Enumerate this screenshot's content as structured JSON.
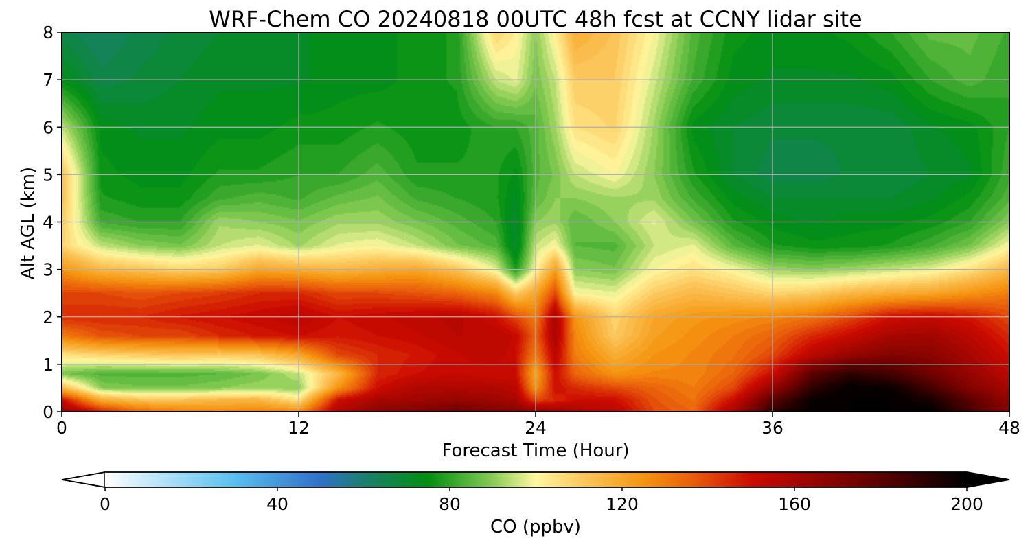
{
  "chart_data": {
    "type": "heatmap",
    "title": "WRF-Chem CO  20240818 00UTC 48h fcst at CCNY lidar site",
    "xlabel": "Forecast Time (Hour)",
    "ylabel": "Alt AGL (km)",
    "xlim": [
      0,
      48
    ],
    "ylim": [
      0,
      8
    ],
    "x_ticks": [
      0,
      12,
      24,
      36,
      48
    ],
    "y_ticks": [
      0,
      1,
      2,
      3,
      4,
      5,
      6,
      7,
      8
    ],
    "grid": true,
    "colorbar": {
      "label": "CO  (ppbv)",
      "range": [
        0,
        200
      ],
      "ticks": [
        0,
        40,
        80,
        120,
        160,
        200
      ],
      "extend": "both",
      "orientation": "horizontal",
      "stops": [
        {
          "value": 0,
          "color": "#ffffff"
        },
        {
          "value": 20,
          "color": "#8fd3f5"
        },
        {
          "value": 30,
          "color": "#58c0ef"
        },
        {
          "value": 50,
          "color": "#3070c8"
        },
        {
          "value": 60,
          "color": "#1a7f70"
        },
        {
          "value": 75,
          "color": "#008f10"
        },
        {
          "value": 90,
          "color": "#88cc55"
        },
        {
          "value": 100,
          "color": "#fff8a0"
        },
        {
          "value": 112,
          "color": "#fbc255"
        },
        {
          "value": 125,
          "color": "#f59510"
        },
        {
          "value": 137,
          "color": "#e85a0a"
        },
        {
          "value": 150,
          "color": "#cc0a00"
        },
        {
          "value": 175,
          "color": "#700200"
        },
        {
          "value": 200,
          "color": "#000000"
        }
      ]
    },
    "field": {
      "description_units": "CO mixing ratio in ppbv; rows are altitude km, columns are forecast hour",
      "hours": [
        0,
        2,
        4,
        6,
        8,
        10,
        12,
        14,
        16,
        18,
        20,
        22,
        23,
        24,
        25,
        26,
        28,
        30,
        32,
        34,
        36,
        38,
        40,
        42,
        44,
        46,
        48
      ],
      "alts_km": [
        0,
        0.25,
        0.5,
        0.8,
        1.2,
        1.6,
        2.0,
        2.5,
        3.0,
        3.5,
        4.0,
        4.5,
        5.0,
        6.0,
        7.0,
        8.0
      ],
      "values": [
        [
          165,
          148,
          135,
          130,
          128,
          130,
          128,
          158,
          168,
          172,
          176,
          172,
          170,
          168,
          165,
          160,
          155,
          140,
          135,
          160,
          190,
          200,
          200,
          200,
          200,
          185,
          170
        ],
        [
          150,
          118,
          112,
          112,
          115,
          115,
          105,
          150,
          160,
          162,
          165,
          162,
          160,
          140,
          145,
          150,
          150,
          138,
          132,
          150,
          180,
          198,
          200,
          200,
          195,
          180,
          165
        ],
        [
          115,
          90,
          88,
          88,
          90,
          92,
          90,
          125,
          150,
          158,
          158,
          158,
          155,
          125,
          150,
          145,
          140,
          135,
          130,
          140,
          165,
          190,
          200,
          198,
          185,
          170,
          160
        ],
        [
          88,
          84,
          84,
          84,
          85,
          88,
          95,
          115,
          145,
          150,
          152,
          150,
          150,
          120,
          150,
          135,
          125,
          128,
          128,
          135,
          150,
          180,
          190,
          185,
          175,
          165,
          155
        ],
        [
          105,
          108,
          110,
          112,
          110,
          112,
          120,
          140,
          145,
          148,
          152,
          155,
          150,
          130,
          155,
          130,
          118,
          125,
          128,
          132,
          140,
          155,
          165,
          170,
          168,
          160,
          150
        ],
        [
          130,
          138,
          140,
          140,
          145,
          148,
          150,
          148,
          150,
          152,
          155,
          155,
          152,
          135,
          160,
          128,
          110,
          122,
          126,
          130,
          135,
          145,
          152,
          160,
          162,
          155,
          145
        ],
        [
          145,
          145,
          145,
          148,
          150,
          152,
          155,
          150,
          152,
          154,
          156,
          150,
          140,
          130,
          160,
          125,
          108,
          120,
          124,
          126,
          128,
          132,
          140,
          150,
          152,
          148,
          140
        ],
        [
          140,
          140,
          138,
          140,
          142,
          145,
          145,
          140,
          140,
          138,
          135,
          128,
          110,
          120,
          140,
          100,
          98,
          110,
          115,
          112,
          108,
          110,
          115,
          118,
          120,
          125,
          130
        ],
        [
          125,
          115,
          112,
          108,
          110,
          120,
          118,
          115,
          118,
          120,
          112,
          98,
          78,
          100,
          122,
          90,
          88,
          100,
          105,
          100,
          92,
          90,
          92,
          95,
          98,
          105,
          115
        ],
        [
          108,
          95,
          90,
          88,
          95,
          98,
          92,
          98,
          100,
          95,
          88,
          84,
          70,
          95,
          100,
          85,
          84,
          95,
          98,
          85,
          78,
          76,
          76,
          78,
          82,
          88,
          100
        ],
        [
          110,
          82,
          80,
          80,
          92,
          90,
          88,
          92,
          92,
          88,
          84,
          80,
          70,
          90,
          92,
          85,
          90,
          98,
          88,
          78,
          74,
          72,
          74,
          74,
          76,
          80,
          90
        ],
        [
          112,
          78,
          76,
          76,
          82,
          84,
          82,
          86,
          88,
          82,
          80,
          78,
          72,
          85,
          90,
          90,
          92,
          92,
          82,
          74,
          70,
          70,
          70,
          70,
          72,
          76,
          84
        ],
        [
          112,
          76,
          74,
          74,
          78,
          78,
          80,
          80,
          84,
          78,
          78,
          78,
          74,
          84,
          88,
          95,
          100,
          90,
          78,
          70,
          66,
          66,
          68,
          68,
          70,
          72,
          82
        ],
        [
          95,
          74,
          72,
          72,
          74,
          74,
          76,
          76,
          78,
          76,
          76,
          80,
          80,
          84,
          92,
          105,
          108,
          92,
          74,
          70,
          68,
          68,
          68,
          68,
          72,
          74,
          80
        ],
        [
          74,
          66,
          68,
          70,
          72,
          72,
          72,
          74,
          74,
          76,
          78,
          95,
          98,
          88,
          95,
          110,
          110,
          96,
          82,
          74,
          72,
          72,
          72,
          74,
          80,
          84,
          80
        ],
        [
          66,
          62,
          66,
          68,
          70,
          72,
          72,
          74,
          74,
          76,
          78,
          108,
          102,
          90,
          102,
          118,
          112,
          100,
          84,
          76,
          74,
          74,
          76,
          80,
          86,
          86,
          82
        ]
      ]
    }
  }
}
